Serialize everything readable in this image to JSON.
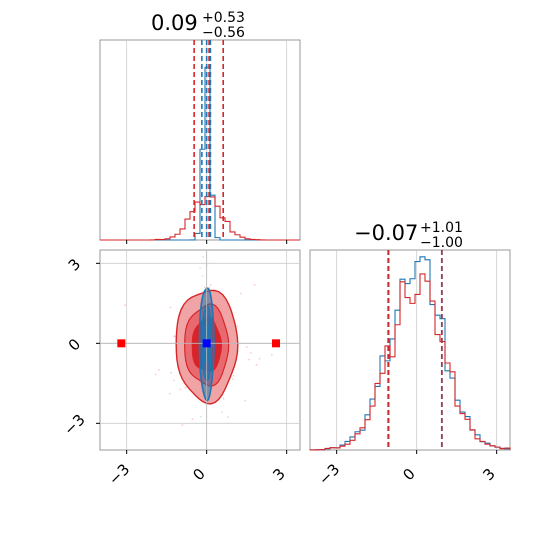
{
  "colors": {
    "blue": "#1f77b4",
    "red": "#d62728",
    "marker_blue": "#0000ff",
    "marker_red": "#ff0000",
    "grid": "#cccccc",
    "frame": "#999999"
  },
  "chart_data": [
    {
      "type": "histogram",
      "panel": "top-left",
      "title": {
        "median": "0.09",
        "upper": "+0.53",
        "lower": "−0.56"
      },
      "x_range": [
        -4.0,
        3.5
      ],
      "ticks": [
        -3,
        0,
        3
      ],
      "tick_labels_visible": false,
      "grid": true,
      "series": [
        {
          "name": "",
          "color": "#1f77b4",
          "style": "step",
          "center": 0.0,
          "sigma": 0.13,
          "peak_fraction": 0.93,
          "quantile_lines": [
            -0.18,
            0.0,
            0.14
          ]
        },
        {
          "name": "",
          "color": "#d62728",
          "style": "step",
          "center": 0.0,
          "sigma": 0.55,
          "peak_fraction": 0.22,
          "quantile_lines": [
            -0.47,
            0.09,
            0.62
          ]
        }
      ]
    },
    {
      "type": "contour",
      "panel": "bottom-left",
      "x_range": [
        -4.0,
        3.5
      ],
      "y_range": [
        -4.0,
        3.5
      ],
      "x_ticks": [
        -3,
        0,
        3
      ],
      "y_ticks": [
        -3,
        0,
        3
      ],
      "x_tick_labels": [
        "−3",
        "0",
        "3"
      ],
      "y_tick_labels": [
        "−3",
        "0",
        "3"
      ],
      "grid": true,
      "truth_lines": {
        "x": 0,
        "y": 0
      },
      "series": [
        {
          "name": "",
          "color": "#1f77b4",
          "center": [
            0.0,
            0.0
          ],
          "sigma": [
            0.13,
            1.0
          ]
        },
        {
          "name": "",
          "color": "#d62728",
          "center": [
            0.0,
            -0.07
          ],
          "sigma": [
            0.55,
            1.0
          ]
        }
      ],
      "markers": [
        {
          "x": 0.0,
          "y": 0.0,
          "color": "#0000ff",
          "shape": "square"
        },
        {
          "x": -3.2,
          "y": 0.0,
          "color": "#ff0000",
          "shape": "square"
        },
        {
          "x": 2.6,
          "y": 0.0,
          "color": "#ff0000",
          "shape": "square"
        }
      ]
    },
    {
      "type": "histogram",
      "panel": "bottom-right",
      "title": {
        "median": "−0.07",
        "upper": "+1.01",
        "lower": "−1.00"
      },
      "x_range": [
        -4.0,
        3.5
      ],
      "ticks": [
        -3,
        0,
        3
      ],
      "tick_labels": [
        "−3",
        "0",
        "3"
      ],
      "grid": true,
      "series": [
        {
          "name": "",
          "color": "#1f77b4",
          "style": "step",
          "center": 0.0,
          "sigma": 1.0,
          "peak_fraction": 0.92,
          "quantile_lines": [
            -1.05,
            0.95
          ]
        },
        {
          "name": "",
          "color": "#d62728",
          "style": "step",
          "center": 0.0,
          "sigma": 1.0,
          "peak_fraction": 0.83,
          "quantile_lines": [
            -1.07,
            0.94
          ]
        }
      ]
    }
  ]
}
